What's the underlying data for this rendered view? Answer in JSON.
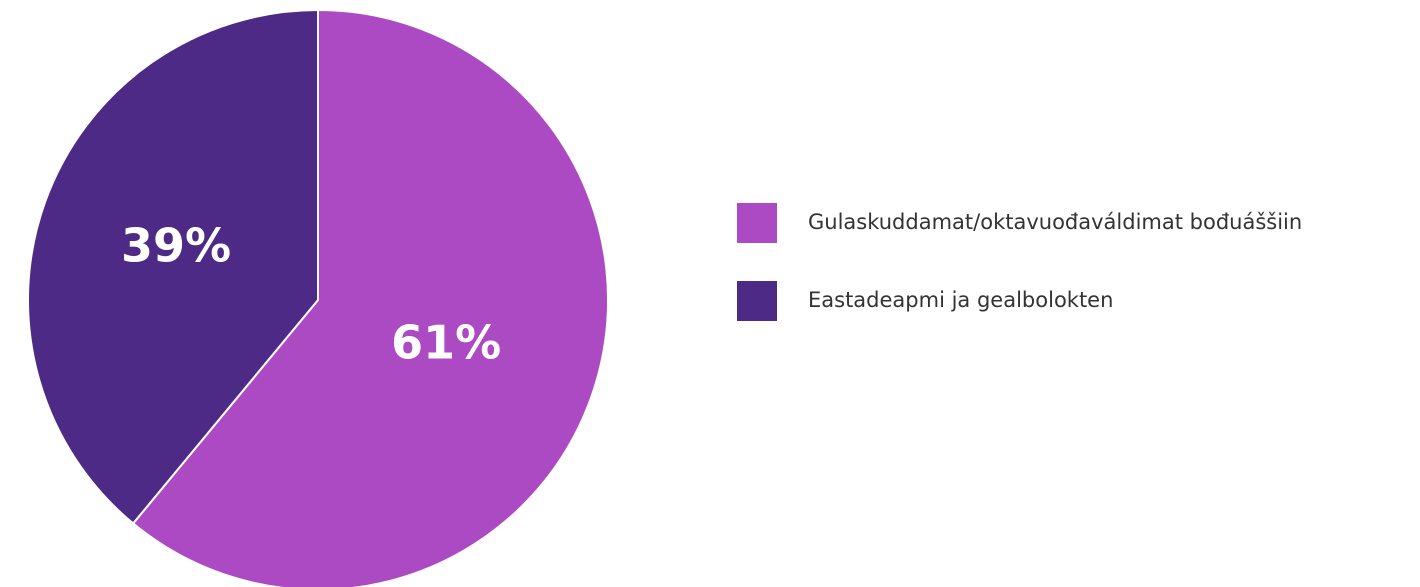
{
  "chart_data": {
    "type": "pie",
    "categories": [
      "Gulaskuddamat/oktavuođaváldimat bođuáššiin",
      "Eastadeapmi ja gealbolokten"
    ],
    "values": [
      61,
      39
    ],
    "value_labels": [
      "61%",
      "39%"
    ],
    "colors": [
      "#ac4ac4",
      "#4e2a87"
    ],
    "legend": "right"
  }
}
